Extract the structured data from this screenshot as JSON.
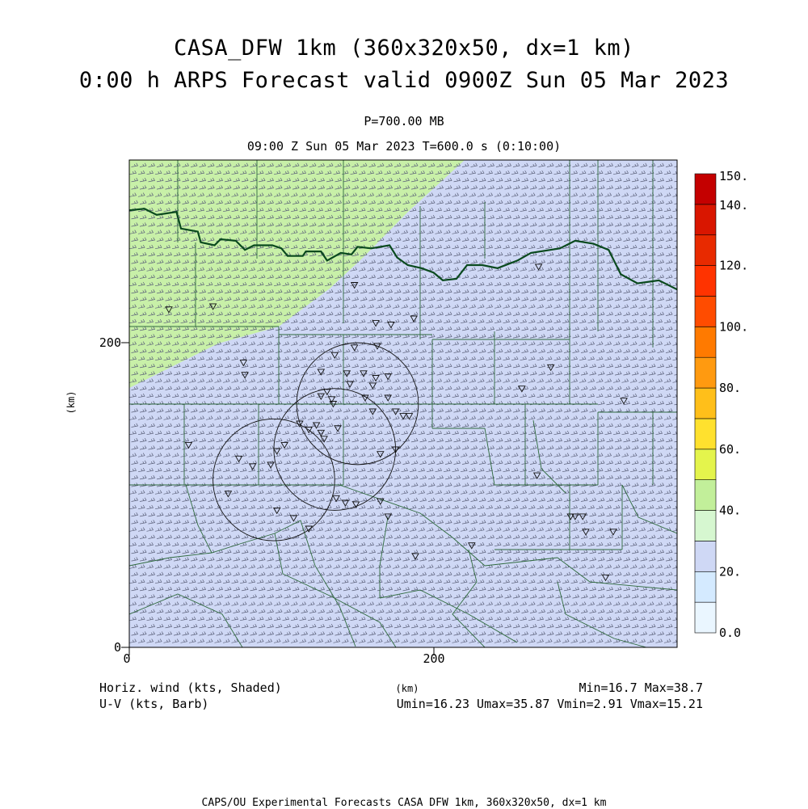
{
  "header": {
    "title_line1": "CASA_DFW 1km (360x320x50, dx=1 km)",
    "title_line2": "0:00 h ARPS Forecast valid 0900Z Sun 05 Mar 2023",
    "level": "P=700.00 MB",
    "valid_line": "09:00 Z Sun 05 Mar 2023    T=600.0 s (0:10:00)"
  },
  "map": {
    "x_axis": {
      "unit_label": "(km)",
      "ticks": [
        0,
        200
      ],
      "range": [
        0,
        360
      ]
    },
    "y_axis": {
      "unit_label": "(km)",
      "ticks": [
        0,
        200
      ],
      "range": [
        0,
        320
      ]
    },
    "field": "Horiz. wind (kts, Shaded)",
    "vectors": "U-V (kts, Barb)",
    "min_max": "Min=16.7 Max=38.7",
    "uv_stats": "Umin=16.23 Umax=35.87 Vmin=2.91 Vmax=15.21",
    "regions": [
      {
        "name": "northwest-light-green-zone",
        "range_kts": [
          30,
          40
        ],
        "color": "#c8f0a8"
      },
      {
        "name": "main-blue-zone",
        "range_kts": [
          20,
          30
        ],
        "color": "#cfd8f5"
      }
    ],
    "radar_rings": [
      {
        "cx_km": 150,
        "cy_km": 160,
        "r_km": 40
      },
      {
        "cx_km": 135,
        "cy_km": 130,
        "r_km": 40
      },
      {
        "cx_km": 95,
        "cy_km": 110,
        "r_km": 40
      }
    ],
    "stations_km": [
      [
        148,
        197
      ],
      [
        135,
        192
      ],
      [
        126,
        181
      ],
      [
        143,
        180
      ],
      [
        154,
        180
      ],
      [
        162,
        177
      ],
      [
        170,
        178
      ],
      [
        145,
        173
      ],
      [
        160,
        172
      ],
      [
        130,
        168
      ],
      [
        126,
        165
      ],
      [
        133,
        163
      ],
      [
        134,
        160
      ],
      [
        155,
        164
      ],
      [
        170,
        164
      ],
      [
        175,
        155
      ],
      [
        180,
        152
      ],
      [
        184,
        152
      ],
      [
        160,
        155
      ],
      [
        112,
        147
      ],
      [
        123,
        146
      ],
      [
        137,
        144
      ],
      [
        118,
        143
      ],
      [
        128,
        137
      ],
      [
        126,
        141
      ],
      [
        102,
        133
      ],
      [
        97,
        129
      ],
      [
        93,
        120
      ],
      [
        72,
        124
      ],
      [
        165,
        127
      ],
      [
        175,
        130
      ],
      [
        39,
        133
      ],
      [
        65,
        101
      ],
      [
        81,
        119
      ],
      [
        97,
        90
      ],
      [
        108,
        85
      ],
      [
        118,
        78
      ],
      [
        136,
        98
      ],
      [
        142,
        95
      ],
      [
        149,
        94
      ],
      [
        165,
        96
      ],
      [
        170,
        86
      ],
      [
        188,
        60
      ],
      [
        225,
        67
      ],
      [
        290,
        86
      ],
      [
        293,
        86
      ],
      [
        298,
        86
      ],
      [
        300,
        76
      ],
      [
        318,
        76
      ],
      [
        313,
        46
      ],
      [
        268,
        113
      ],
      [
        258,
        170
      ],
      [
        277,
        184
      ],
      [
        325,
        162
      ],
      [
        75,
        187
      ],
      [
        76,
        179
      ],
      [
        26,
        222
      ],
      [
        55,
        224
      ],
      [
        148,
        238
      ],
      [
        162,
        213
      ],
      [
        172,
        212
      ],
      [
        187,
        216
      ],
      [
        163,
        198
      ],
      [
        269,
        250
      ]
    ],
    "boundaries_km": {
      "oklahoma_border": [
        [
          0,
          287
        ],
        [
          10,
          288
        ],
        [
          18,
          284
        ],
        [
          31,
          286
        ],
        [
          34,
          275
        ],
        [
          45,
          273
        ],
        [
          47,
          266
        ],
        [
          56,
          264
        ],
        [
          60,
          268
        ],
        [
          70,
          267
        ],
        [
          76,
          261
        ],
        [
          82,
          264
        ],
        [
          94,
          264
        ],
        [
          100,
          262
        ],
        [
          104,
          257
        ],
        [
          114,
          257
        ],
        [
          116,
          260
        ],
        [
          126,
          260
        ],
        [
          130,
          254
        ],
        [
          139,
          259
        ],
        [
          146,
          258
        ],
        [
          150,
          263
        ],
        [
          159,
          262
        ],
        [
          171,
          264
        ],
        [
          176,
          256
        ],
        [
          183,
          251
        ],
        [
          192,
          249
        ],
        [
          200,
          246
        ],
        [
          206,
          241
        ],
        [
          215,
          242
        ],
        [
          222,
          251
        ],
        [
          232,
          251
        ],
        [
          242,
          249
        ],
        [
          255,
          254
        ],
        [
          264,
          259
        ],
        [
          283,
          262
        ],
        [
          293,
          267
        ],
        [
          305,
          265
        ],
        [
          315,
          261
        ],
        [
          323,
          245
        ],
        [
          334,
          239
        ],
        [
          348,
          241
        ],
        [
          360,
          235
        ]
      ]
    },
    "colorbar": {
      "labels": [
        "0.0",
        "20.",
        "40.",
        "60.",
        "80.",
        "100.",
        "120.",
        "140.",
        "150."
      ],
      "colors": [
        "#eaf6ff",
        "#d4eaff",
        "#cfd8f5",
        "#d6f7d0",
        "#c2ef9a",
        "#e4f44c",
        "#ffe12e",
        "#ffbf1a",
        "#ff9a10",
        "#ff7a00",
        "#ff4c00",
        "#ff3300",
        "#e82a00",
        "#d91600",
        "#c40000",
        "#aa0000"
      ]
    }
  },
  "footer": "CAPS/OU Experimental Forecasts   CASA DFW 1km, 360x320x50, dx=1 km"
}
